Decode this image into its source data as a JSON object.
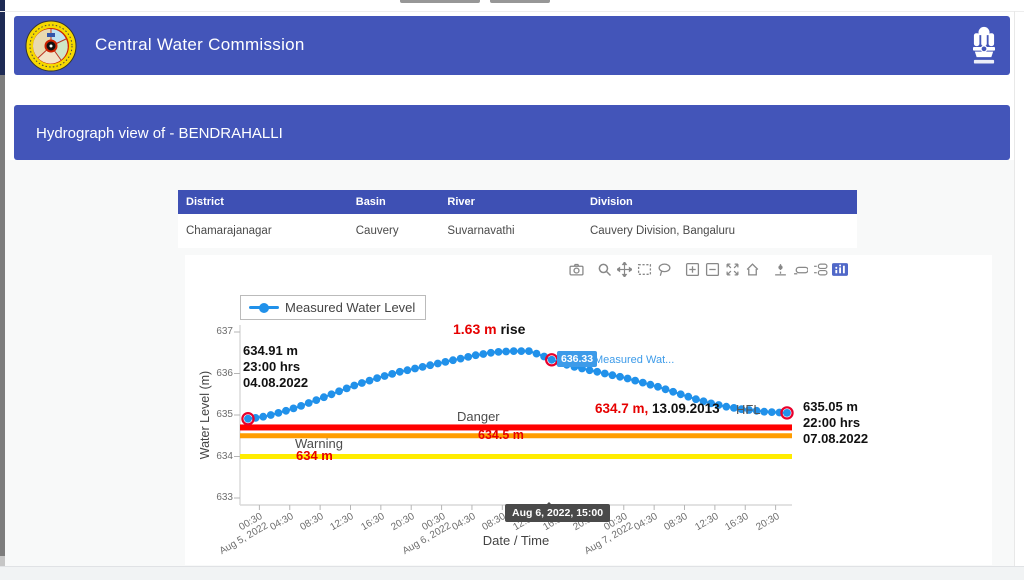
{
  "header": {
    "title": "Central Water Commission",
    "logo": "cwc-logo",
    "emblem": "india-state-emblem"
  },
  "subheader": {
    "title": "Hydrograph view of - BENDRAHALLI"
  },
  "station_table": {
    "columns": [
      "District",
      "Basin",
      "River",
      "Division"
    ],
    "rows": [
      [
        "Chamarajanagar",
        "Cauvery",
        "Suvarnavathi",
        "Cauvery Division, Bangaluru"
      ]
    ]
  },
  "modebar": {
    "icons": [
      "camera",
      "zoom",
      "pan",
      "box-select",
      "lasso",
      "zoom-in",
      "zoom-out",
      "autoscale",
      "reset-axes",
      "toggle-spikelines",
      "hover-closest",
      "hover-compare",
      "plotly-logo"
    ]
  },
  "chart_data": {
    "type": "line",
    "title": "",
    "xlabel": "Date / Time",
    "ylabel": "Water Level (m)",
    "ylim": [
      633,
      637
    ],
    "yticks": [
      637,
      636,
      635,
      634,
      633
    ],
    "x_start": "Aug 4, 2022 23:00",
    "x_interval_hours": 1,
    "xticks": [
      {
        "time": "00:30",
        "date": "Aug 5, 2022"
      },
      {
        "time": "04:30"
      },
      {
        "time": "08:30"
      },
      {
        "time": "12:30"
      },
      {
        "time": "16:30"
      },
      {
        "time": "20:30"
      },
      {
        "time": "00:30",
        "date": "Aug 6, 2022"
      },
      {
        "time": "04:30"
      },
      {
        "time": "08:30"
      },
      {
        "time": "12:30"
      },
      {
        "time": "16:30"
      },
      {
        "time": "20:30"
      },
      {
        "time": "00:30",
        "date": "Aug 7, 2022"
      },
      {
        "time": "04:30"
      },
      {
        "time": "08:30"
      },
      {
        "time": "12:30"
      },
      {
        "time": "16:30"
      },
      {
        "time": "20:30"
      }
    ],
    "series": [
      {
        "name": "Measured Water Level",
        "color": "#2191ea",
        "values": [
          634.91,
          634.93,
          634.96,
          635.0,
          635.05,
          635.1,
          635.16,
          635.22,
          635.29,
          635.36,
          635.43,
          635.5,
          635.57,
          635.64,
          635.71,
          635.77,
          635.83,
          635.89,
          635.94,
          635.99,
          636.04,
          636.08,
          636.12,
          636.16,
          636.2,
          636.24,
          636.28,
          636.32,
          636.36,
          636.4,
          636.44,
          636.47,
          636.5,
          636.52,
          636.53,
          636.54,
          636.54,
          636.54,
          636.48,
          636.41,
          636.33,
          636.27,
          636.21,
          636.16,
          636.12,
          636.08,
          636.04,
          636.0,
          635.96,
          635.92,
          635.88,
          635.83,
          635.78,
          635.73,
          635.68,
          635.62,
          635.56,
          635.5,
          635.44,
          635.38,
          635.33,
          635.28,
          635.24,
          635.2,
          635.17,
          635.14,
          635.12,
          635.1,
          635.08,
          635.07,
          635.06,
          635.05
        ]
      }
    ],
    "highlight_indices": [
      0,
      40,
      71
    ],
    "highlight_ring_color": "#e8002c",
    "reference_lines": [
      {
        "label": "Danger",
        "value": 634.7,
        "color": "#ff0000",
        "thickness": 6
      },
      {
        "label": "",
        "value": 634.5,
        "color": "#ff9d00",
        "thickness": 5
      },
      {
        "label": "Warning",
        "value": 634.0,
        "color": "#ffec00",
        "thickness": 5
      }
    ],
    "legend": {
      "position": "top-left",
      "entries": [
        "Measured Water Level"
      ]
    },
    "annotations": {
      "start": [
        "634.91 m",
        "23:00 hrs",
        "04.08.2022"
      ],
      "rise_red": "1.63 m",
      "rise_black": " rise",
      "hover_value": "636.33",
      "hover_series": "Measured Wat...",
      "hfl_red": "634.7 m,",
      "hfl_black": " 13.09.2013",
      "hfl_tag": "HFL",
      "end": [
        "635.05 m",
        "22:00 hrs",
        "07.08.2022"
      ],
      "danger_label": "Danger",
      "warning_label": "Warning",
      "level_mid": "634.5 m",
      "level_low": "634 m",
      "x_tooltip": "Aug 6, 2022, 15:00"
    }
  }
}
